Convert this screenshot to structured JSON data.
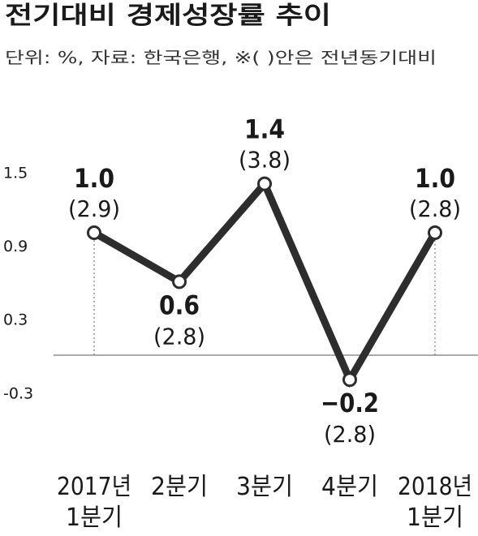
{
  "chart_data": {
    "type": "line",
    "title": "전기대비 경제성장률 추이",
    "subtitle": "단위: %, 자료: 한국은행, ※( )안은 전년동기대비",
    "categories": [
      [
        "2017년",
        "1분기"
      ],
      [
        "2분기"
      ],
      [
        "3분기"
      ],
      [
        "4분기"
      ],
      [
        "2018년",
        "1분기"
      ]
    ],
    "series": [
      {
        "values": [
          1.0,
          0.6,
          1.4,
          -0.2,
          1.0
        ]
      }
    ],
    "value_labels": [
      "1.0",
      "0.6",
      "1.4",
      "−0.2",
      "1.0"
    ],
    "yoy_labels": [
      "(2.9)",
      "(2.8)",
      "(3.8)",
      "(2.8)",
      "(2.8)"
    ],
    "y_ticks": [
      "1.5",
      "0.9",
      "0.3",
      "-0.3"
    ],
    "y_tick_values": [
      1.5,
      0.9,
      0.3,
      -0.3
    ],
    "ylim": [
      -0.45,
      1.95
    ],
    "baseline": 0,
    "grid": false,
    "colors": {
      "line": "#2d2d2d",
      "text": "#1a1a1a",
      "baseline": "#777777"
    }
  }
}
